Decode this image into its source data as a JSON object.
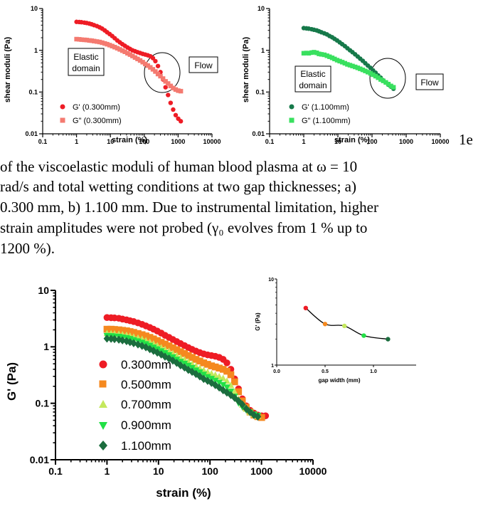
{
  "caption": {
    "partial": "1e",
    "lines": [
      "of the viscoelastic moduli of human blood plasma at ω = 10",
      "rad/s and total wetting conditions at two gap thicknesses; a)",
      "0.300 mm, b) 1.100 mm. Due to instrumental limitation, higher",
      "strain amplitudes were not probed (γ₀ evolves from 1 % up to",
      "1200 %)."
    ]
  },
  "colors": {
    "red": "#ee1c25",
    "salmon": "#f47a70",
    "dark_green": "#16794a",
    "light_green": "#39e05f",
    "orange": "#f5891f",
    "yellow_green": "#c4e85d",
    "bright_green": "#22e046",
    "forest_green": "#1b6d3e"
  },
  "chart_data": [
    {
      "id": "a",
      "type": "scatter",
      "xscale": "log",
      "yscale": "log",
      "xlim": [
        0.1,
        10000
      ],
      "ylim": [
        0.01,
        10
      ],
      "xlabel": "strain (%)",
      "ylabel": "shear moduli (Pa)",
      "xticks": [
        "0.1",
        "1",
        "10",
        "100",
        "1000",
        "10000"
      ],
      "yticks": [
        "0.01",
        "0.1",
        "1",
        "10"
      ],
      "legend_position": "bottom-left",
      "annotations": [
        "Elastic\ndomain",
        "Flow"
      ],
      "series": [
        {
          "name": "G' (0.300mm)",
          "marker": "circle",
          "color": "#ee1c25",
          "x": [
            1,
            1.2,
            1.4,
            1.7,
            2,
            2.4,
            2.8,
            3.3,
            4,
            4.8,
            5.7,
            6.8,
            8,
            9.5,
            11.3,
            13.4,
            16,
            19,
            22.6,
            26.8,
            32,
            38,
            45,
            53.5,
            63.5,
            75.5,
            90,
            107,
            127,
            151,
            180,
            213,
            254,
            301,
            358,
            425,
            505,
            600,
            714,
            848,
            1008,
            1200
          ],
          "y": [
            4.8,
            4.75,
            4.7,
            4.6,
            4.5,
            4.35,
            4.2,
            4.0,
            3.8,
            3.55,
            3.3,
            3.0,
            2.7,
            2.45,
            2.2,
            1.95,
            1.72,
            1.55,
            1.4,
            1.28,
            1.17,
            1.08,
            1.0,
            0.95,
            0.9,
            0.86,
            0.82,
            0.79,
            0.76,
            0.72,
            0.65,
            0.55,
            0.42,
            0.3,
            0.2,
            0.13,
            0.085,
            0.055,
            0.038,
            0.028,
            0.023,
            0.02
          ]
        },
        {
          "name": "G\" (0.300mm)",
          "marker": "square",
          "color": "#f47a70",
          "x": [
            1,
            1.2,
            1.4,
            1.7,
            2,
            2.4,
            2.8,
            3.3,
            4,
            4.8,
            5.7,
            6.8,
            8,
            9.5,
            11.3,
            13.4,
            16,
            19,
            22.6,
            26.8,
            32,
            38,
            45,
            53.5,
            63.5,
            75.5,
            90,
            107,
            127,
            151,
            180,
            213,
            254,
            301,
            358,
            425,
            505,
            600,
            714,
            848,
            1008,
            1200
          ],
          "y": [
            1.85,
            1.83,
            1.8,
            1.78,
            1.76,
            1.72,
            1.7,
            1.66,
            1.62,
            1.58,
            1.52,
            1.46,
            1.4,
            1.33,
            1.26,
            1.19,
            1.12,
            1.05,
            0.98,
            0.92,
            0.85,
            0.79,
            0.73,
            0.67,
            0.62,
            0.57,
            0.52,
            0.47,
            0.43,
            0.39,
            0.35,
            0.31,
            0.27,
            0.24,
            0.21,
            0.18,
            0.16,
            0.14,
            0.125,
            0.115,
            0.108,
            0.105
          ]
        }
      ]
    },
    {
      "id": "b",
      "type": "scatter",
      "xscale": "log",
      "yscale": "log",
      "xlim": [
        0.1,
        10000
      ],
      "ylim": [
        0.01,
        10
      ],
      "xlabel": "strain (%)",
      "ylabel": "shear moduli (Pa)",
      "xticks": [
        "0.1",
        "1",
        "10",
        "100",
        "1000",
        "10000"
      ],
      "yticks": [
        "0.01",
        "0.1",
        "1",
        "10"
      ],
      "legend_position": "bottom-left",
      "annotations": [
        "Elastic\ndomain",
        "Flow"
      ],
      "series": [
        {
          "name": "G' (1.100mm)",
          "marker": "circle",
          "color": "#16794a",
          "x": [
            1,
            1.2,
            1.4,
            1.7,
            2,
            2.4,
            2.8,
            3.3,
            4,
            4.8,
            5.7,
            6.8,
            8,
            9.5,
            11.3,
            13.4,
            16,
            19,
            22.6,
            26.8,
            32,
            38,
            45,
            53.5,
            63.5,
            75.5,
            90,
            107,
            127,
            151,
            180,
            213,
            254,
            301,
            358,
            425
          ],
          "y": [
            3.4,
            3.35,
            3.3,
            3.2,
            3.1,
            3.0,
            2.85,
            2.7,
            2.55,
            2.4,
            2.2,
            2.05,
            1.88,
            1.72,
            1.55,
            1.4,
            1.26,
            1.12,
            1.0,
            0.9,
            0.8,
            0.71,
            0.63,
            0.56,
            0.49,
            0.43,
            0.38,
            0.33,
            0.29,
            0.25,
            0.22,
            0.19,
            0.17,
            0.15,
            0.135,
            0.12
          ]
        },
        {
          "name": "G\" (1.100mm)",
          "marker": "square",
          "color": "#39e05f",
          "x": [
            1,
            1.2,
            1.4,
            1.7,
            2,
            2.4,
            2.8,
            3.3,
            4,
            4.8,
            5.7,
            6.8,
            8,
            9.5,
            11.3,
            13.4,
            16,
            19,
            22.6,
            26.8,
            32,
            38,
            45,
            53.5,
            63.5,
            75.5,
            90,
            107,
            127,
            151,
            180,
            213,
            254,
            301,
            358,
            425
          ],
          "y": [
            0.85,
            0.86,
            0.85,
            0.88,
            0.9,
            0.87,
            0.82,
            0.8,
            0.78,
            0.74,
            0.7,
            0.66,
            0.62,
            0.58,
            0.55,
            0.52,
            0.49,
            0.46,
            0.44,
            0.42,
            0.4,
            0.38,
            0.36,
            0.34,
            0.32,
            0.3,
            0.28,
            0.26,
            0.24,
            0.22,
            0.2,
            0.185,
            0.17,
            0.155,
            0.14,
            0.13
          ]
        }
      ]
    },
    {
      "id": "c",
      "type": "scatter",
      "xscale": "log",
      "yscale": "log",
      "xlim": [
        0.1,
        10000
      ],
      "ylim": [
        0.01,
        10
      ],
      "xlabel": "strain (%)",
      "ylabel": "G' (Pa)",
      "xticks": [
        "0.1",
        "1",
        "10",
        "100",
        "1000",
        "10000"
      ],
      "yticks": [
        "0.01",
        "0.1",
        "1",
        "10"
      ],
      "legend_position": "bottom-left",
      "series": [
        {
          "name": "0.300mm",
          "marker": "circle",
          "color": "#ee1c25",
          "x": [
            1,
            1.2,
            1.4,
            1.7,
            2,
            2.4,
            2.8,
            3.3,
            4,
            4.8,
            5.7,
            6.8,
            8,
            9.5,
            11.3,
            13.4,
            16,
            19,
            22.6,
            26.8,
            32,
            38,
            45,
            53.5,
            63.5,
            75.5,
            90,
            107,
            127,
            151,
            180,
            213,
            254,
            301,
            358,
            425,
            505,
            600,
            714,
            848,
            1008,
            1200
          ],
          "y": [
            3.3,
            3.28,
            3.25,
            3.2,
            3.1,
            3.0,
            2.9,
            2.8,
            2.65,
            2.5,
            2.35,
            2.2,
            2.05,
            1.9,
            1.75,
            1.6,
            1.47,
            1.35,
            1.24,
            1.14,
            1.05,
            0.97,
            0.9,
            0.84,
            0.79,
            0.75,
            0.72,
            0.7,
            0.68,
            0.65,
            0.6,
            0.52,
            0.4,
            0.27,
            0.18,
            0.12,
            0.09,
            0.075,
            0.067,
            0.062,
            0.06,
            0.06
          ]
        },
        {
          "name": "0.500mm",
          "marker": "square",
          "color": "#f5891f",
          "x": [
            1,
            1.2,
            1.4,
            1.7,
            2,
            2.4,
            2.8,
            3.3,
            4,
            4.8,
            5.7,
            6.8,
            8,
            9.5,
            11.3,
            13.4,
            16,
            19,
            22.6,
            26.8,
            32,
            38,
            45,
            53.5,
            63.5,
            75.5,
            90,
            107,
            127,
            151,
            180,
            213,
            254,
            301,
            358,
            425,
            505,
            600,
            714,
            848,
            1008
          ],
          "y": [
            2.05,
            2.05,
            2.03,
            2.0,
            1.96,
            1.92,
            1.86,
            1.8,
            1.72,
            1.64,
            1.56,
            1.47,
            1.38,
            1.29,
            1.2,
            1.12,
            1.04,
            0.96,
            0.89,
            0.82,
            0.76,
            0.7,
            0.65,
            0.6,
            0.56,
            0.52,
            0.49,
            0.46,
            0.44,
            0.42,
            0.4,
            0.37,
            0.32,
            0.24,
            0.16,
            0.11,
            0.085,
            0.07,
            0.062,
            0.058,
            0.056
          ]
        },
        {
          "name": "0.700mm",
          "marker": "triangle-up",
          "color": "#c4e85d",
          "x": [
            1,
            1.2,
            1.4,
            1.7,
            2,
            2.4,
            2.8,
            3.3,
            4,
            4.8,
            5.7,
            6.8,
            8,
            9.5,
            11.3,
            13.4,
            16,
            19,
            22.6,
            26.8,
            32,
            38,
            45,
            53.5,
            63.5,
            75.5,
            90,
            107,
            127,
            151,
            180,
            213,
            254,
            301,
            358,
            425,
            505,
            600,
            714,
            848
          ],
          "y": [
            1.75,
            1.74,
            1.72,
            1.7,
            1.66,
            1.62,
            1.57,
            1.51,
            1.45,
            1.38,
            1.3,
            1.22,
            1.14,
            1.06,
            0.98,
            0.91,
            0.84,
            0.77,
            0.71,
            0.65,
            0.6,
            0.55,
            0.5,
            0.46,
            0.42,
            0.39,
            0.36,
            0.34,
            0.32,
            0.3,
            0.28,
            0.25,
            0.21,
            0.16,
            0.12,
            0.095,
            0.08,
            0.07,
            0.064,
            0.06
          ]
        },
        {
          "name": "0.900mm",
          "marker": "triangle-down",
          "color": "#22e046",
          "x": [
            1,
            1.2,
            1.4,
            1.7,
            2,
            2.4,
            2.8,
            3.3,
            4,
            4.8,
            5.7,
            6.8,
            8,
            9.5,
            11.3,
            13.4,
            16,
            19,
            22.6,
            26.8,
            32,
            38,
            45,
            53.5,
            63.5,
            75.5,
            90,
            107,
            127,
            151,
            180,
            213,
            254,
            301,
            358,
            425,
            505,
            600,
            714,
            848
          ],
          "y": [
            1.55,
            1.54,
            1.52,
            1.5,
            1.46,
            1.42,
            1.37,
            1.31,
            1.25,
            1.18,
            1.11,
            1.04,
            0.97,
            0.9,
            0.83,
            0.77,
            0.71,
            0.65,
            0.59,
            0.54,
            0.5,
            0.46,
            0.42,
            0.38,
            0.35,
            0.32,
            0.29,
            0.27,
            0.25,
            0.23,
            0.21,
            0.19,
            0.16,
            0.13,
            0.1,
            0.085,
            0.075,
            0.068,
            0.063,
            0.06
          ]
        },
        {
          "name": "1.100mm",
          "marker": "diamond",
          "color": "#1b6d3e",
          "x": [
            1,
            1.2,
            1.4,
            1.7,
            2,
            2.4,
            2.8,
            3.3,
            4,
            4.8,
            5.7,
            6.8,
            8,
            9.5,
            11.3,
            13.4,
            16,
            19,
            22.6,
            26.8,
            32,
            38,
            45,
            53.5,
            63.5,
            75.5,
            90,
            107,
            127,
            151,
            180,
            213,
            254,
            301,
            358,
            425,
            505,
            600,
            714,
            848
          ],
          "y": [
            1.4,
            1.39,
            1.37,
            1.34,
            1.3,
            1.26,
            1.21,
            1.16,
            1.1,
            1.04,
            0.98,
            0.91,
            0.85,
            0.79,
            0.73,
            0.67,
            0.62,
            0.57,
            0.52,
            0.47,
            0.43,
            0.39,
            0.36,
            0.33,
            0.3,
            0.27,
            0.25,
            0.23,
            0.21,
            0.19,
            0.17,
            0.155,
            0.14,
            0.125,
            0.11,
            0.095,
            0.08,
            0.07,
            0.062,
            0.058
          ]
        }
      ]
    },
    {
      "id": "inset",
      "type": "scatter",
      "xscale": "linear",
      "yscale": "log",
      "xlim": [
        0.0,
        1.5
      ],
      "ylim": [
        1,
        10
      ],
      "xlabel": "gap width (mm)",
      "ylabel": "G' (Pa)",
      "xticks": [
        "0.0",
        "0.5",
        "1.0",
        "1.5"
      ],
      "yticks": [
        "1",
        "10"
      ],
      "fit_line": true,
      "points": [
        {
          "x": 0.3,
          "y": 4.6,
          "color": "#ee1c25"
        },
        {
          "x": 0.5,
          "y": 3.0,
          "color": "#f5891f"
        },
        {
          "x": 0.7,
          "y": 2.85,
          "color": "#c4e85d"
        },
        {
          "x": 0.9,
          "y": 2.2,
          "color": "#22e046"
        },
        {
          "x": 1.15,
          "y": 2.0,
          "color": "#1b6d3e"
        }
      ]
    }
  ]
}
